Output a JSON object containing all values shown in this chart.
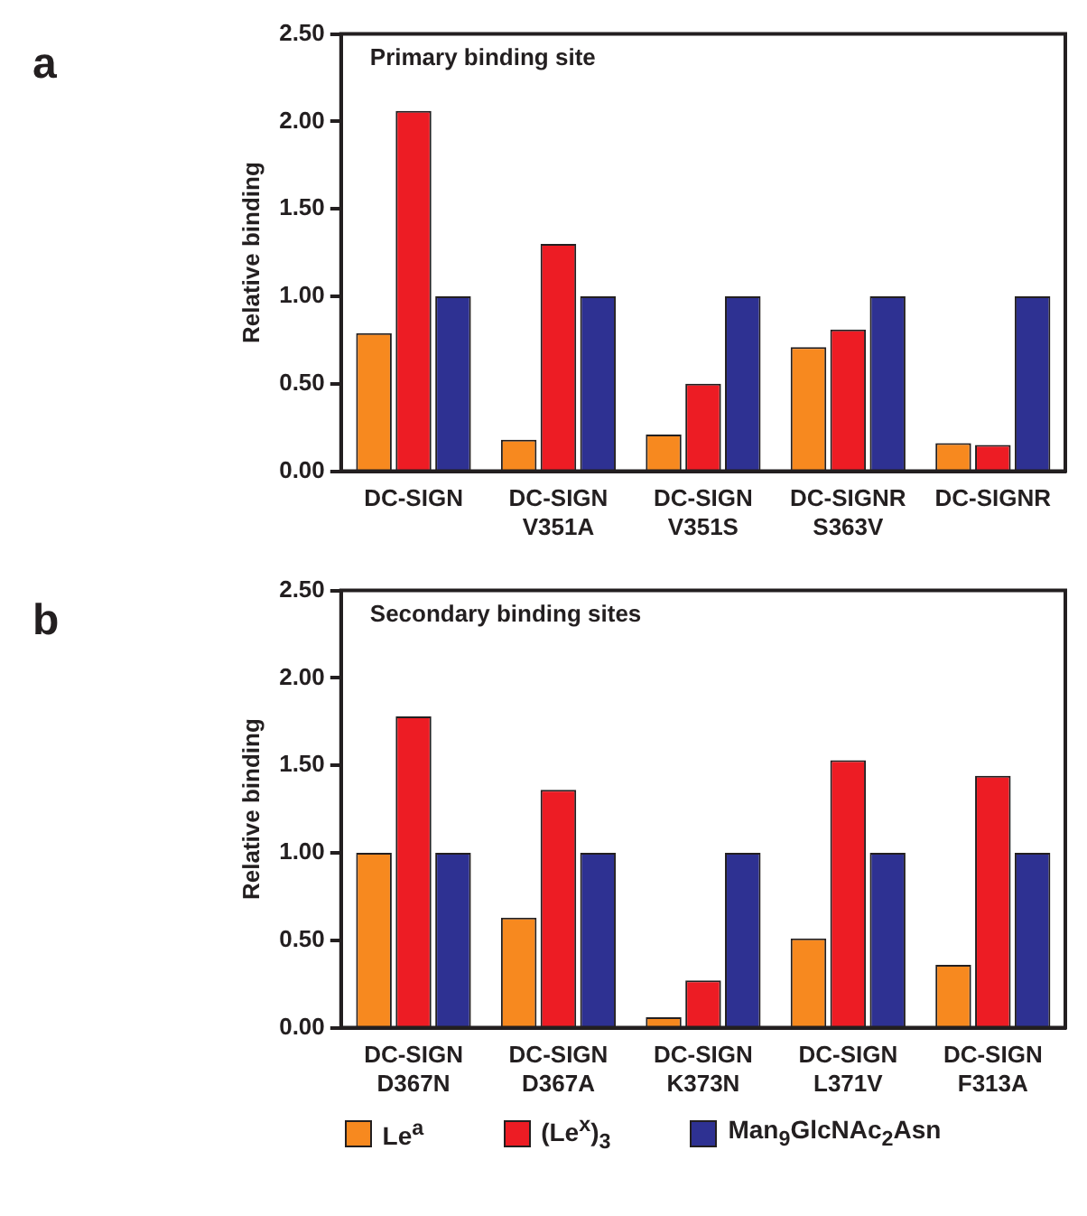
{
  "chart_data": [
    {
      "type": "bar",
      "title": "a",
      "annotations": [
        "Primary binding site"
      ],
      "ylabel": "Relative binding",
      "categories": [
        "DC-SIGN",
        "DC-SIGN V351A",
        "DC-SIGN V351S",
        "DC-SIGNR S363V",
        "DC-SIGNR"
      ],
      "series": [
        {
          "color": "#f7891f",
          "values": [
            0.79,
            0.18,
            0.21,
            0.71,
            0.16
          ]
        },
        {
          "color": "#ed1c24",
          "values": [
            2.06,
            1.3,
            0.5,
            0.81,
            0.15
          ]
        },
        {
          "color": "#2e3192",
          "values": [
            1.0,
            1.0,
            1.0,
            1.0,
            1.0
          ]
        }
      ],
      "ylim": [
        0,
        2.5
      ],
      "yticks": [
        {
          "value": 0,
          "label": "0.00"
        },
        {
          "value": 0.5,
          "label": "0.50"
        },
        {
          "value": 1,
          "label": "1.00"
        },
        {
          "value": 1.5,
          "label": "1.50"
        },
        {
          "value": 2,
          "label": "2.00"
        },
        {
          "value": 2.5,
          "label": "2.50"
        }
      ],
      "grid": false,
      "legend": false
    },
    {
      "type": "bar",
      "title": "b",
      "annotations": [
        "Secondary binding sites"
      ],
      "ylabel": "Relative binding",
      "categories": [
        "DC-SIGN D367N",
        "DC-SIGN D367A",
        "DC-SIGN K373N",
        "DC-SIGN L371V",
        "DC-SIGN F313A"
      ],
      "series": [
        {
          "name": "Le$^{a}$",
          "color": "#f7891f",
          "values": [
            1.0,
            0.63,
            0.06,
            0.51,
            0.36
          ]
        },
        {
          "name": "(Le$^{x}$)$_{3}$",
          "color": "#ed1c24",
          "values": [
            1.78,
            1.36,
            0.27,
            1.53,
            1.44
          ]
        },
        {
          "name": "Man$_{9}$GlcNAc$_{2}$Asn",
          "color": "#2e3192",
          "values": [
            1.0,
            1.0,
            1.0,
            1.0,
            1.0
          ]
        }
      ],
      "ylim": [
        0,
        2.5
      ],
      "yticks": [
        {
          "value": 0,
          "label": "0.00"
        },
        {
          "value": 0.5,
          "label": "0.50"
        },
        {
          "value": 1,
          "label": "1.00"
        },
        {
          "value": 1.5,
          "label": "1.50"
        },
        {
          "value": 2,
          "label": "2.00"
        },
        {
          "value": 2.5,
          "label": "2.50"
        }
      ],
      "grid": false,
      "legend": "bottom"
    }
  ]
}
